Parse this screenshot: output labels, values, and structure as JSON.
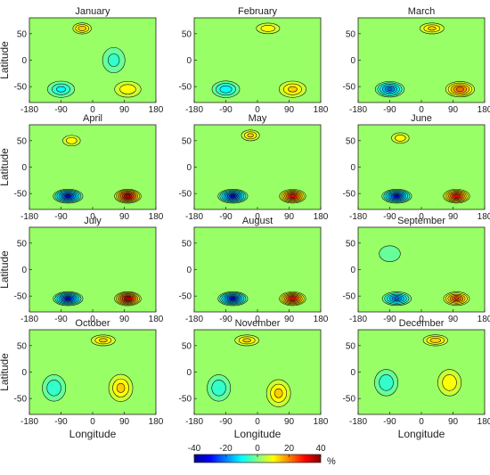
{
  "chart_data": {
    "type": "heatmap",
    "xlabel": "Longitude",
    "ylabel": "Latitude",
    "x_ticks": [
      -180,
      -90,
      0,
      90,
      180
    ],
    "y_ticks": [
      50,
      0,
      -50
    ],
    "xlim": [
      -180,
      180
    ],
    "ylim": [
      -80,
      80
    ],
    "colorbar": {
      "ticks": [
        -40,
        -20,
        0,
        20,
        40
      ],
      "unit": "%",
      "range": [
        -40,
        40
      ],
      "colors": [
        "#00008f",
        "#0000ff",
        "#0080ff",
        "#00ffff",
        "#80ff80",
        "#ffff00",
        "#ff8000",
        "#ff0000",
        "#800000"
      ]
    },
    "panels": [
      {
        "title": "January",
        "features": [
          {
            "lon": -90,
            "lat": -55,
            "value": -12,
            "dlon": 45,
            "dlat": 18
          },
          {
            "lon": 100,
            "lat": -55,
            "value": 10,
            "dlon": 45,
            "dlat": 18
          },
          {
            "lon": -30,
            "lat": 60,
            "value": 14,
            "dlon": 30,
            "dlat": 12
          },
          {
            "lon": 60,
            "lat": 0,
            "value": -8,
            "dlon": 40,
            "dlat": 30
          }
        ]
      },
      {
        "title": "February",
        "features": [
          {
            "lon": -90,
            "lat": -55,
            "value": -14,
            "dlon": 45,
            "dlat": 18
          },
          {
            "lon": 100,
            "lat": -55,
            "value": 12,
            "dlon": 45,
            "dlat": 18
          },
          {
            "lon": 30,
            "lat": 60,
            "value": 10,
            "dlon": 40,
            "dlat": 12
          }
        ]
      },
      {
        "title": "March",
        "features": [
          {
            "lon": -90,
            "lat": -55,
            "value": -24,
            "dlon": 45,
            "dlat": 16
          },
          {
            "lon": 110,
            "lat": -55,
            "value": 22,
            "dlon": 45,
            "dlat": 16
          },
          {
            "lon": 30,
            "lat": 60,
            "value": 12,
            "dlon": 40,
            "dlat": 12
          }
        ]
      },
      {
        "title": "April",
        "features": [
          {
            "lon": -70,
            "lat": -55,
            "value": -32,
            "dlon": 45,
            "dlat": 14
          },
          {
            "lon": 100,
            "lat": -55,
            "value": 34,
            "dlon": 40,
            "dlat": 14
          },
          {
            "lon": -60,
            "lat": 50,
            "value": 10,
            "dlon": 30,
            "dlat": 12
          }
        ]
      },
      {
        "title": "May",
        "features": [
          {
            "lon": -70,
            "lat": -55,
            "value": -32,
            "dlon": 45,
            "dlat": 14
          },
          {
            "lon": 100,
            "lat": -55,
            "value": 30,
            "dlon": 40,
            "dlat": 14
          },
          {
            "lon": -20,
            "lat": 60,
            "value": 12,
            "dlon": 30,
            "dlat": 12
          }
        ]
      },
      {
        "title": "June",
        "features": [
          {
            "lon": -70,
            "lat": -55,
            "value": -32,
            "dlon": 45,
            "dlat": 14
          },
          {
            "lon": 100,
            "lat": -55,
            "value": 30,
            "dlon": 40,
            "dlat": 14
          },
          {
            "lon": -60,
            "lat": 55,
            "value": 10,
            "dlon": 30,
            "dlat": 12
          }
        ]
      },
      {
        "title": "July",
        "features": [
          {
            "lon": -70,
            "lat": -55,
            "value": -32,
            "dlon": 45,
            "dlat": 14
          },
          {
            "lon": 100,
            "lat": -55,
            "value": 34,
            "dlon": 40,
            "dlat": 14
          }
        ]
      },
      {
        "title": "August",
        "features": [
          {
            "lon": -70,
            "lat": -55,
            "value": -32,
            "dlon": 45,
            "dlat": 14
          },
          {
            "lon": 100,
            "lat": -55,
            "value": 30,
            "dlon": 40,
            "dlat": 14
          }
        ]
      },
      {
        "title": "September",
        "features": [
          {
            "lon": -70,
            "lat": -55,
            "value": -24,
            "dlon": 45,
            "dlat": 14
          },
          {
            "lon": 100,
            "lat": -55,
            "value": 24,
            "dlon": 40,
            "dlat": 14
          },
          {
            "lon": -90,
            "lat": 30,
            "value": -6,
            "dlon": 40,
            "dlat": 20
          }
        ]
      },
      {
        "title": "October",
        "features": [
          {
            "lon": -110,
            "lat": -30,
            "value": -10,
            "dlon": 40,
            "dlat": 30
          },
          {
            "lon": 80,
            "lat": -30,
            "value": 12,
            "dlon": 40,
            "dlat": 30
          },
          {
            "lon": 30,
            "lat": 60,
            "value": 12,
            "dlon": 40,
            "dlat": 12
          }
        ]
      },
      {
        "title": "November",
        "features": [
          {
            "lon": -110,
            "lat": -30,
            "value": -10,
            "dlon": 40,
            "dlat": 30
          },
          {
            "lon": 60,
            "lat": -40,
            "value": 12,
            "dlon": 40,
            "dlat": 30
          },
          {
            "lon": -30,
            "lat": 60,
            "value": 12,
            "dlon": 40,
            "dlat": 12
          }
        ]
      },
      {
        "title": "December",
        "features": [
          {
            "lon": -100,
            "lat": -20,
            "value": -10,
            "dlon": 40,
            "dlat": 30
          },
          {
            "lon": 80,
            "lat": -20,
            "value": 10,
            "dlon": 40,
            "dlat": 30
          },
          {
            "lon": 40,
            "lat": 60,
            "value": 14,
            "dlon": 40,
            "dlat": 12
          }
        ]
      }
    ]
  }
}
